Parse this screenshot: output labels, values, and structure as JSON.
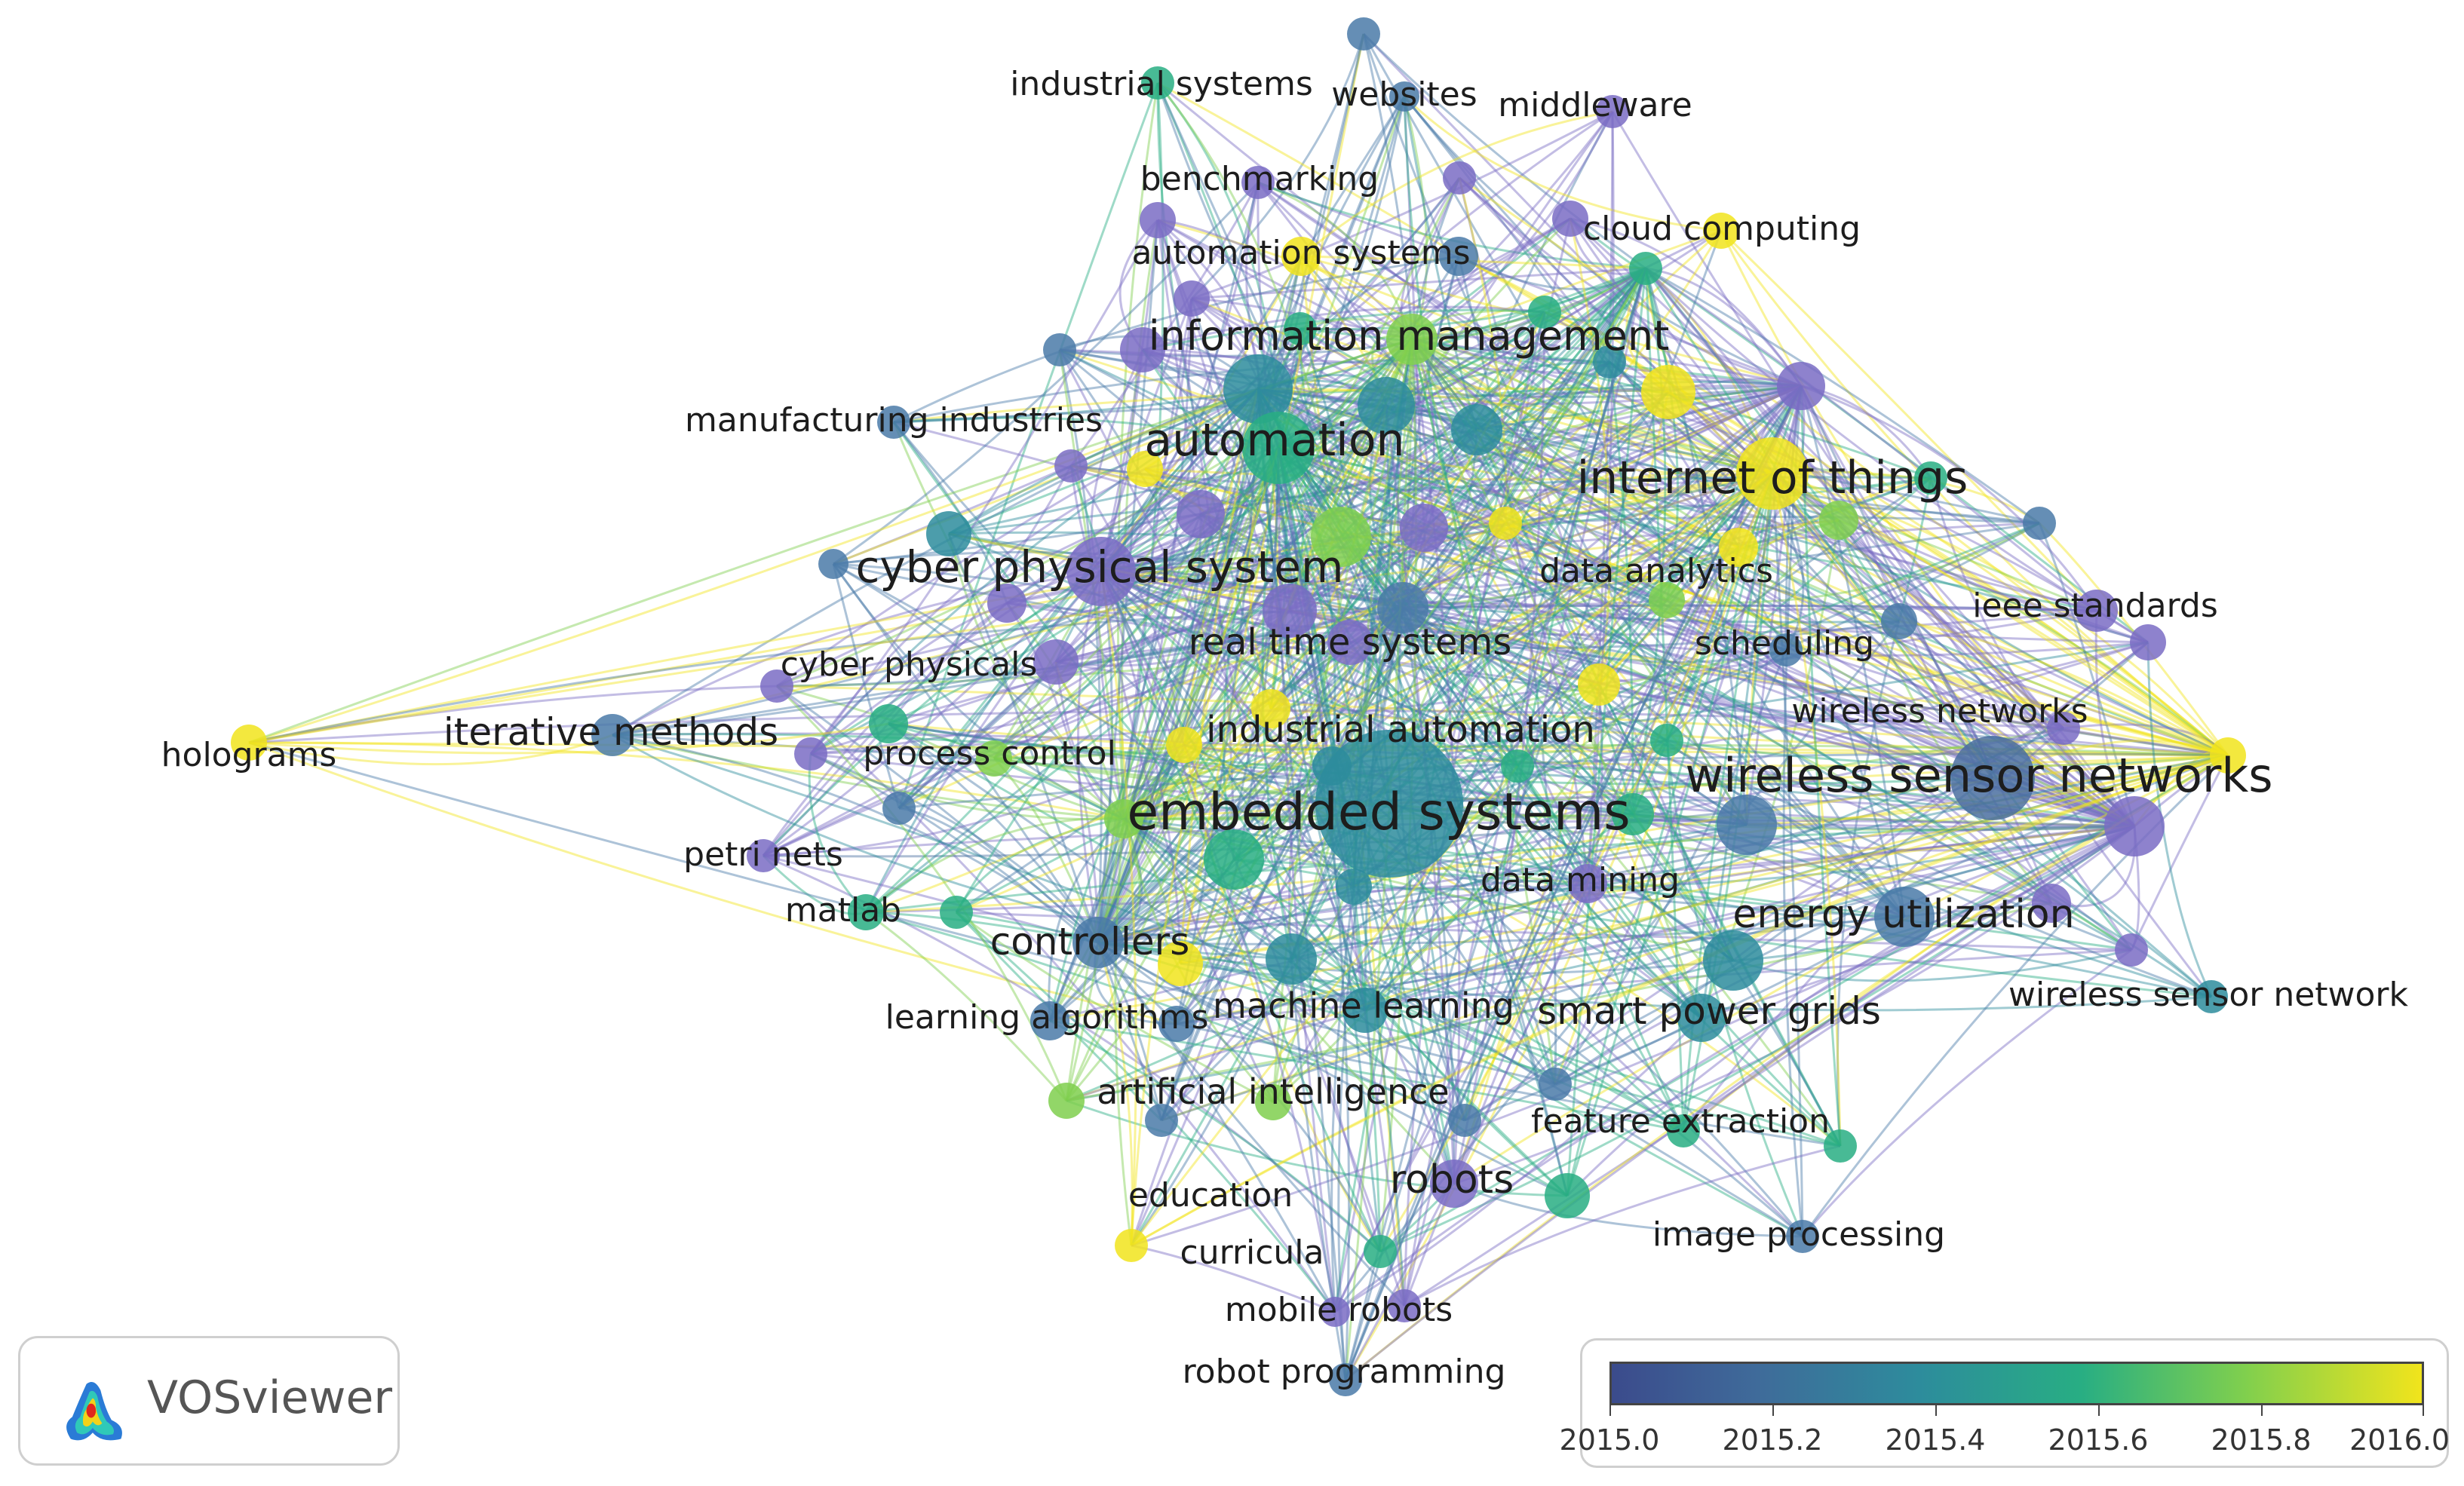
{
  "app": {
    "brand_name": "VOSviewer",
    "logo_icon": "vosviewer-logo-icon"
  },
  "legend": {
    "ticks": [
      "2015.0",
      "2015.2",
      "2015.4",
      "2015.6",
      "2015.8",
      "2016.0"
    ],
    "colors": [
      "#3b4b8c",
      "#3f6b9a",
      "#2d8c9c",
      "#28ae83",
      "#7fcf4e",
      "#f1e41c"
    ]
  },
  "network": {
    "labels": {
      "industrial_systems": "industrial systems",
      "websites": "websites",
      "middleware": "middleware",
      "benchmarking": "benchmarking",
      "cloud_computing": "cloud computing",
      "automation_systems": "automation systems",
      "information_management": "information management",
      "manufacturing_industries": "manufacturing industries",
      "automation": "automation",
      "internet_of_things": "internet of things",
      "cyber_physical_system": "cyber physical system",
      "data_analytics": "data analytics",
      "ieee_standards": "ieee standards",
      "real_time_systems": "real time systems",
      "scheduling": "scheduling",
      "cyber_physicals": "cyber physicals",
      "wireless_networks": "wireless networks",
      "holograms": "holograms",
      "iterative_methods": "iterative methods",
      "industrial_automation": "industrial automation",
      "process_control": "process control",
      "wireless_sensor_networks": "wireless sensor networks",
      "embedded_systems": "embedded systems",
      "petri_nets": "petri nets",
      "data_mining": "data mining",
      "matlab": "matlab",
      "energy_utilization": "energy utilization",
      "controllers": "controllers",
      "wireless_sensor_network": "wireless sensor network",
      "learning_algorithms": "learning algorithms",
      "machine_learning": "machine learning",
      "smart_power_grids": "smart power grids",
      "artificial_intelligence": "artificial intelligence",
      "feature_extraction": "feature extraction",
      "robots": "robots",
      "education": "education",
      "image_processing": "image processing",
      "curricula": "curricula",
      "mobile_robots": "mobile robots",
      "robot_programming": "robot programming"
    }
  }
}
